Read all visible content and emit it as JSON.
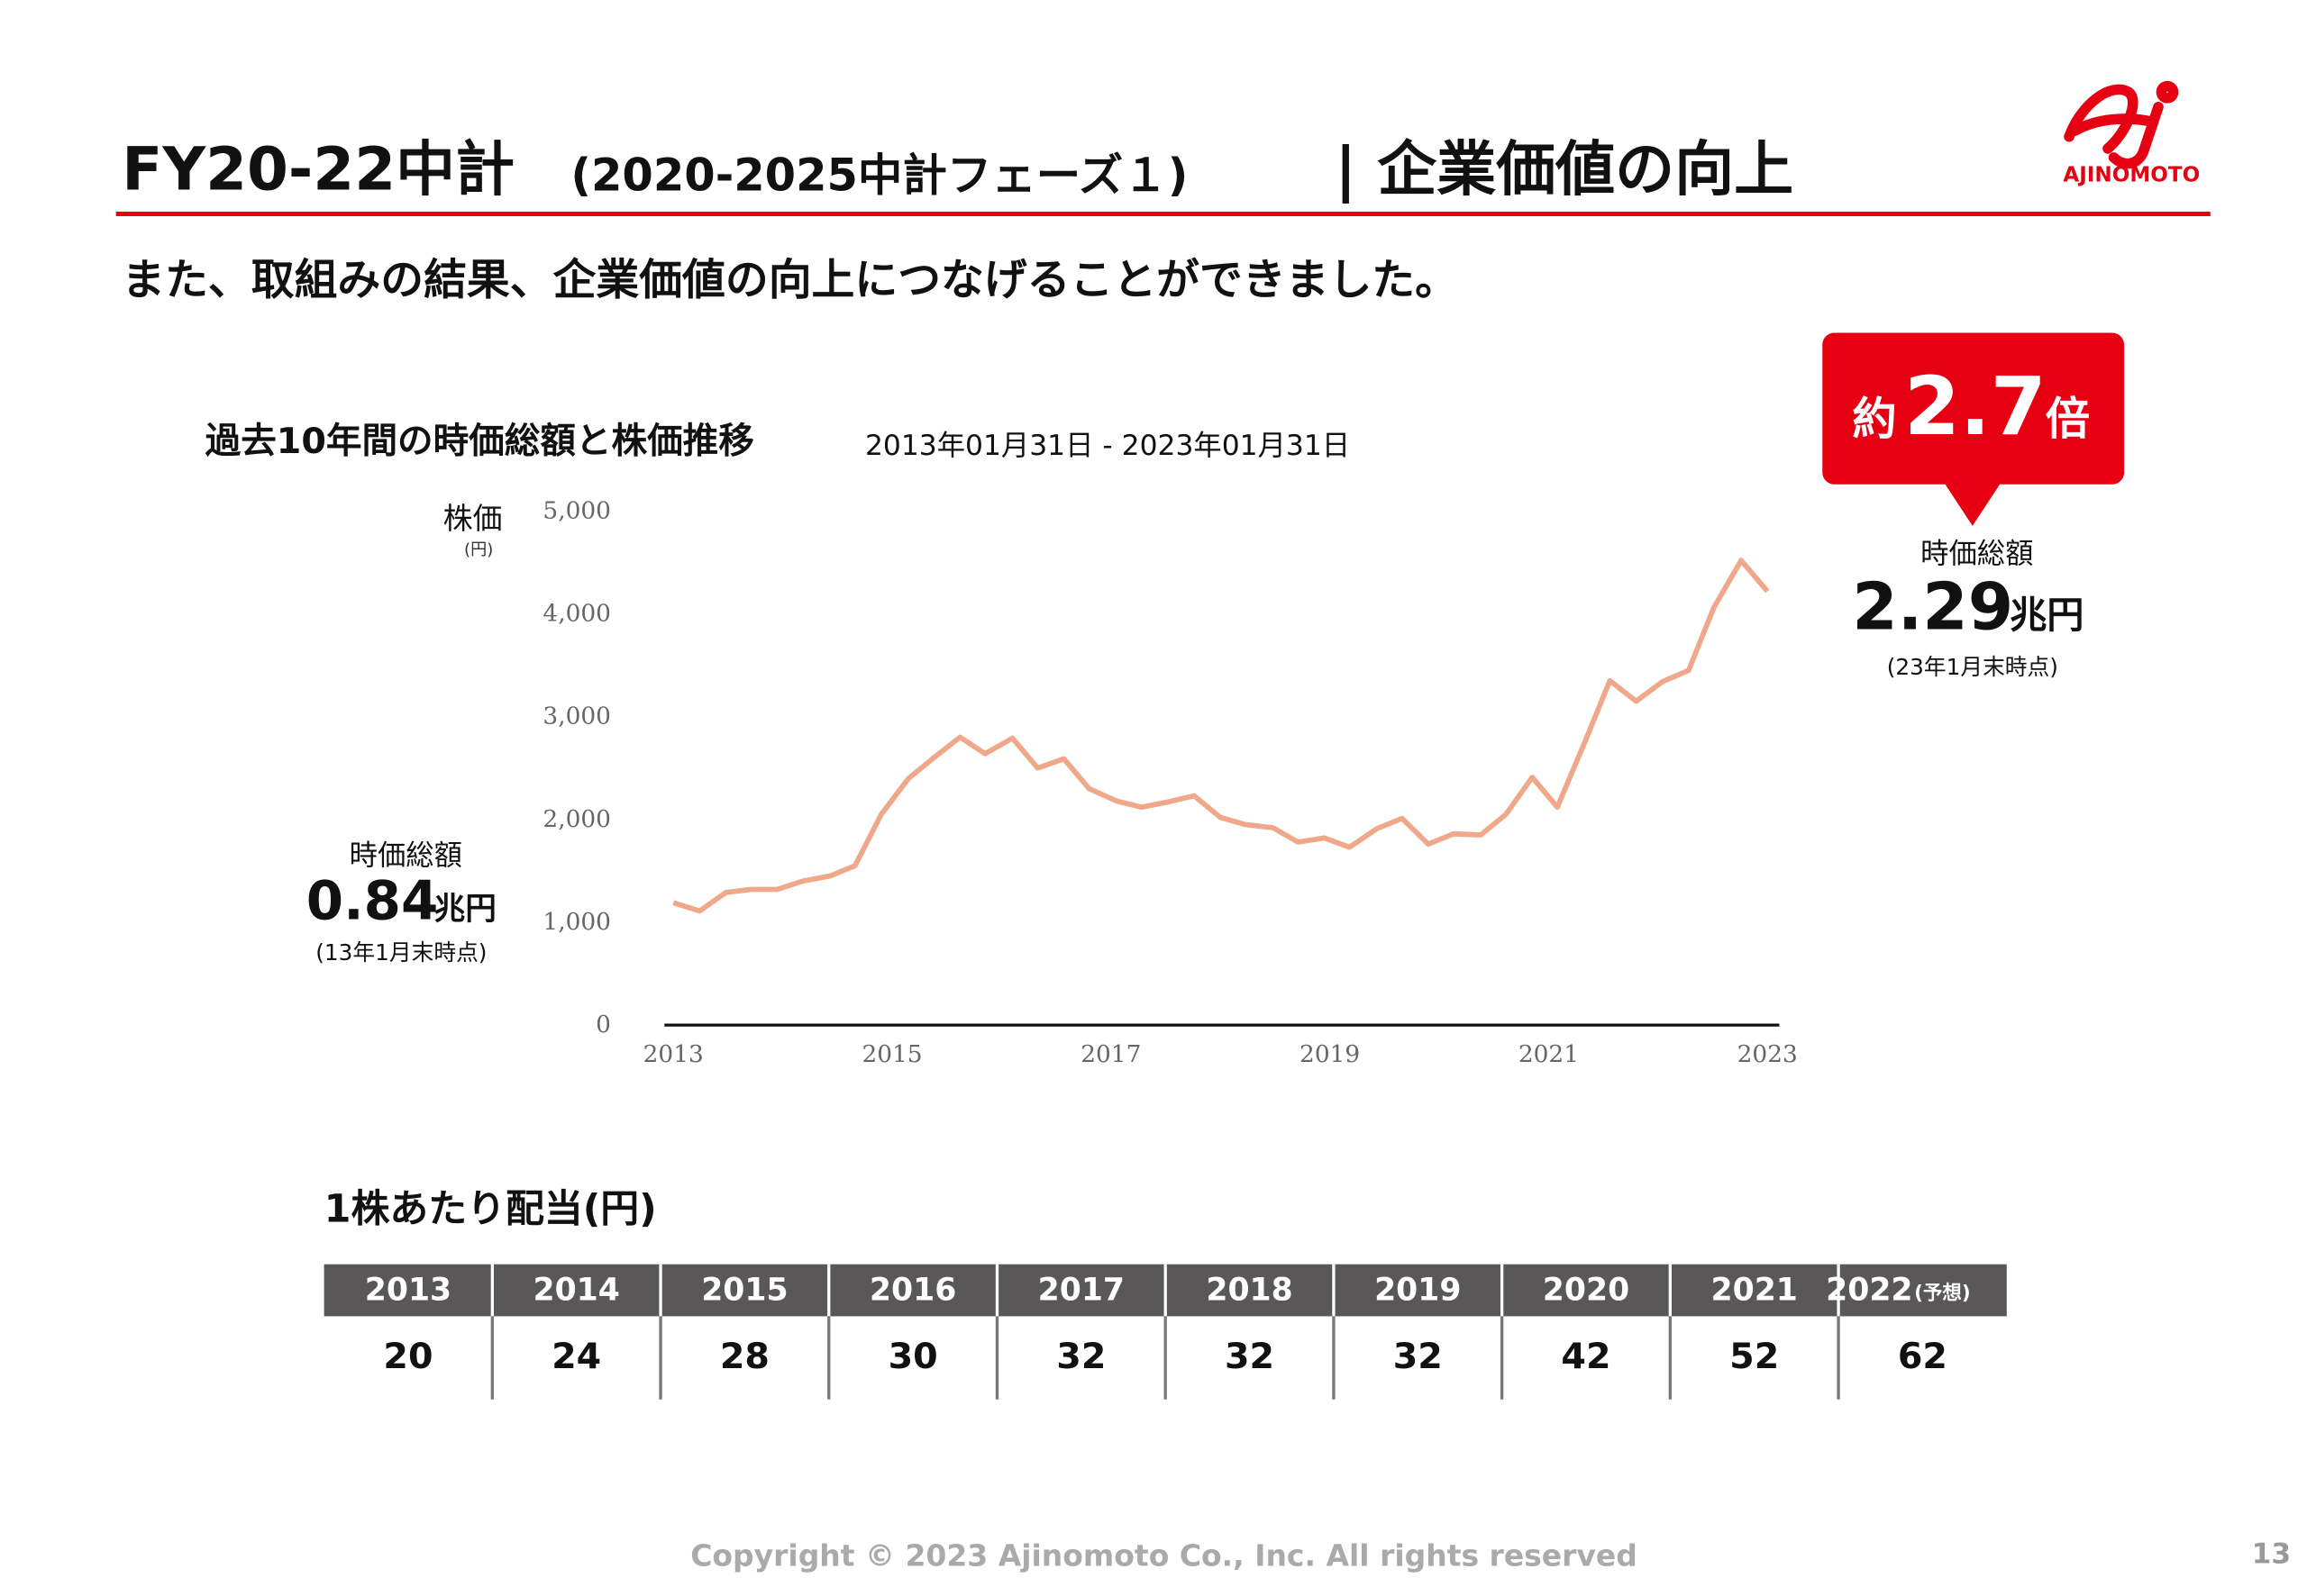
{
  "header": {
    "title_main": "FY20-22中計",
    "title_sub": "(2020-2025中計フェーズ１)",
    "title_tail": "| 企業価値の向上",
    "logo": "AJINOMOTO"
  },
  "subheading": "また、取組みの結果、企業価値の向上につなげることができました。",
  "chart_data": {
    "type": "line",
    "title": "過去10年間の時価総額と株価推移",
    "subtitle": "2013年01月31日 - 2023年01月31日",
    "y_label": "株価",
    "y_unit": "(円)",
    "x": [
      2013,
      2013.24,
      2013.48,
      2013.71,
      2013.95,
      2014.18,
      2014.43,
      2014.66,
      2014.9,
      2015.15,
      2015.38,
      2015.62,
      2015.85,
      2016.1,
      2016.33,
      2016.57,
      2016.8,
      2017.05,
      2017.28,
      2017.52,
      2017.76,
      2018,
      2018.23,
      2018.48,
      2018.71,
      2018.95,
      2019.18,
      2019.43,
      2019.66,
      2019.9,
      2020.13,
      2020.38,
      2020.61,
      2020.85,
      2021.08,
      2021.33,
      2021.56,
      2021.8,
      2022.04,
      2022.28,
      2022.51,
      2022.76,
      2023
    ],
    "series": [
      {
        "name": "株価",
        "color": "#f0a88a",
        "values": [
          1190,
          1110,
          1290,
          1320,
          1320,
          1400,
          1450,
          1550,
          2050,
          2400,
          2600,
          2800,
          2640,
          2790,
          2500,
          2590,
          2300,
          2180,
          2120,
          2170,
          2230,
          2020,
          1950,
          1920,
          1780,
          1820,
          1730,
          1910,
          2010,
          1760,
          1860,
          1850,
          2050,
          2410,
          2120,
          2750,
          3350,
          3150,
          3340,
          3450,
          4060,
          4520,
          4220
        ]
      }
    ],
    "xlim": [
      2013,
      2023
    ],
    "xticks": [
      2013,
      2015,
      2017,
      2019,
      2021,
      2023
    ],
    "ylim": [
      0,
      5000
    ],
    "yticks": [
      0,
      {
        "value": 1000,
        "label": "1,000"
      },
      {
        "value": 2000,
        "label": "2,000"
      },
      {
        "value": 3000,
        "label": "3,000"
      },
      {
        "value": 4000,
        "label": "4,000"
      },
      {
        "value": 5000,
        "label": "5,000"
      }
    ],
    "grid": false,
    "annotations": {
      "start": {
        "label": "時価総額",
        "value": "0.84",
        "unit": "兆円",
        "note": "(13年1月末時点)"
      },
      "end": {
        "label": "時価総額",
        "value": "2.29",
        "unit": "兆円",
        "note": "(23年1月末時点)"
      },
      "callout": {
        "prefix": "約",
        "value": "2.7",
        "suffix": "倍"
      }
    }
  },
  "table": {
    "title": "1株あたり配当(円)",
    "headers": [
      "2013",
      "2014",
      "2015",
      "2016",
      "2017",
      "2018",
      "2019",
      "2020",
      "2021",
      "2022"
    ],
    "header_note": "(予想)",
    "values": [
      "20",
      "24",
      "28",
      "30",
      "32",
      "32",
      "32",
      "42",
      "52",
      "62"
    ]
  },
  "footer": {
    "copyright": "Copyright © 2023 Ajinomoto Co., Inc. All rights reserved",
    "page": "13"
  }
}
